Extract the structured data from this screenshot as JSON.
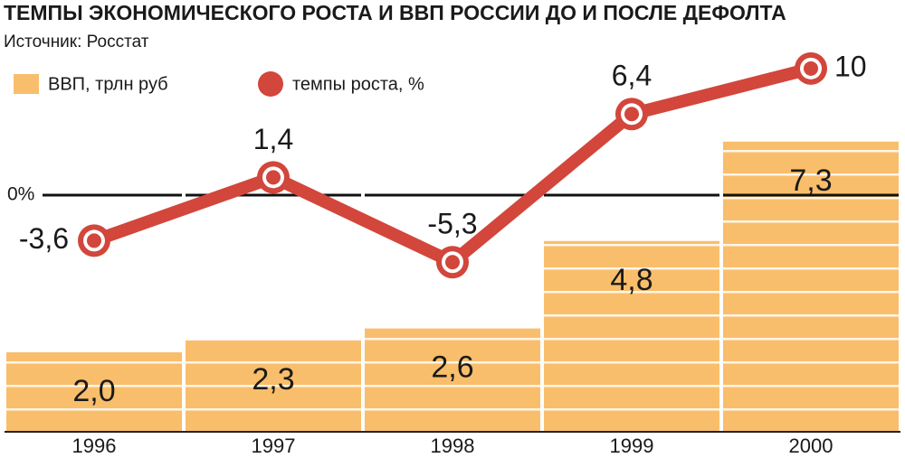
{
  "chart_data": {
    "type": "bar-line",
    "title": "ТЕМПЫ ЭКОНОМИЧЕСКОГО РОСТА И ВВП РОССИИ ДО И ПОСЛЕ ДЕФОЛТА",
    "source": "Источник: Росстат",
    "categories": [
      "1996",
      "1997",
      "1998",
      "1999",
      "2000"
    ],
    "series": [
      {
        "name": "ВВП, трлн руб",
        "type": "bar",
        "color": "#f9be6b",
        "axis": "y",
        "values": [
          2.0,
          2.3,
          2.6,
          4.8,
          7.3
        ],
        "value_labels": [
          "2,0",
          "2,3",
          "2,6",
          "4,8",
          "7,3"
        ]
      },
      {
        "name": "темпы роста, %",
        "type": "line",
        "color": "#d2463b",
        "axis": "y2",
        "values": [
          -3.6,
          1.4,
          -5.3,
          6.4,
          10
        ],
        "value_labels": [
          "-3,6",
          "1,4",
          "-5,3",
          "6,4",
          "10"
        ]
      }
    ],
    "ylim": [
      0,
      10
    ],
    "y2lim": [
      -18.7,
      12.7
    ],
    "y2ticks": [
      {
        "value": 0,
        "label": "0%"
      }
    ],
    "legend": "top-left"
  }
}
